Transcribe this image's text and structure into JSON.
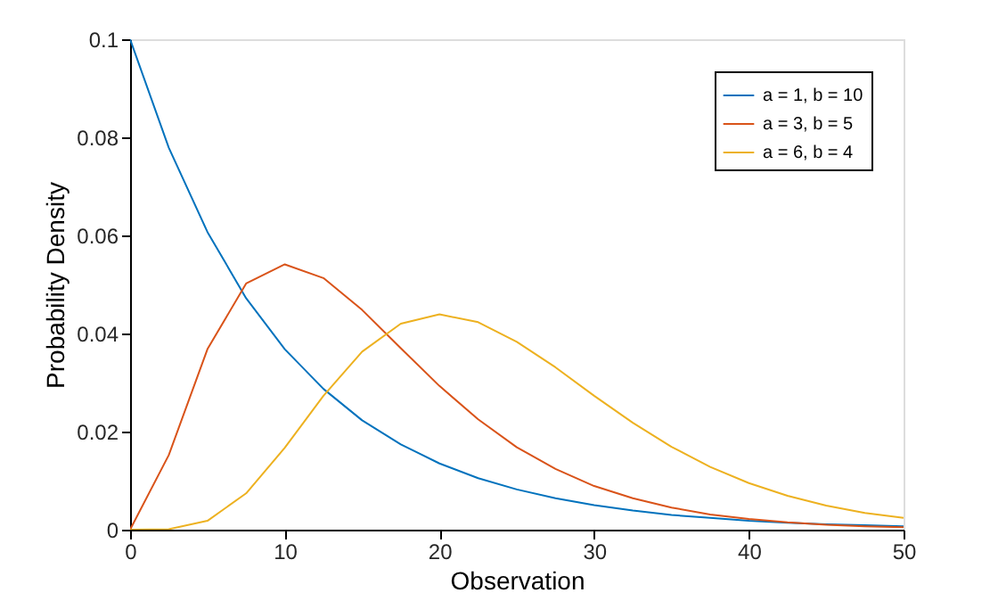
{
  "chart_data": {
    "type": "line",
    "xlabel": "Observation",
    "ylabel": "Probability Density",
    "x": [
      0,
      2.5,
      5,
      7.5,
      10,
      12.5,
      15,
      17.5,
      20,
      22.5,
      25,
      27.5,
      30,
      32.5,
      35,
      37.5,
      40,
      42.5,
      45,
      47.5,
      50
    ],
    "series": [
      {
        "name": "a = 1, b = 10",
        "color": "#0072bd",
        "values": [
          0.1,
          0.0779,
          0.0607,
          0.0472,
          0.0368,
          0.0287,
          0.0223,
          0.0174,
          0.0135,
          0.0105,
          0.0082,
          0.0064,
          0.005,
          0.0039,
          0.003,
          0.0024,
          0.0018,
          0.0014,
          0.0011,
          0.0009,
          0.0007
        ]
      },
      {
        "name": "a = 3, b = 5",
        "color": "#d95319",
        "values": [
          0,
          0.0152,
          0.0368,
          0.0502,
          0.0541,
          0.0513,
          0.0448,
          0.037,
          0.0293,
          0.0225,
          0.0168,
          0.0124,
          0.0089,
          0.0064,
          0.0045,
          0.0031,
          0.0022,
          0.0015,
          0.001,
          0.0007,
          0.0005
        ]
      },
      {
        "name": "a = 6, b = 4",
        "color": "#edb120",
        "values": [
          0,
          0.0001,
          0.0018,
          0.0074,
          0.0167,
          0.0273,
          0.0363,
          0.042,
          0.0439,
          0.0423,
          0.0383,
          0.0331,
          0.0273,
          0.0218,
          0.0169,
          0.0128,
          0.0095,
          0.0069,
          0.0049,
          0.0034,
          0.0024
        ]
      }
    ],
    "xlim": [
      0,
      50
    ],
    "xticks": [
      0,
      10,
      20,
      30,
      40,
      50
    ],
    "ylim": [
      0,
      0.1
    ],
    "yticks": [
      0,
      0.02,
      0.04,
      0.06,
      0.08,
      0.1
    ],
    "grid": false,
    "legend": "top right",
    "marker": "none",
    "line_style": "solid"
  }
}
